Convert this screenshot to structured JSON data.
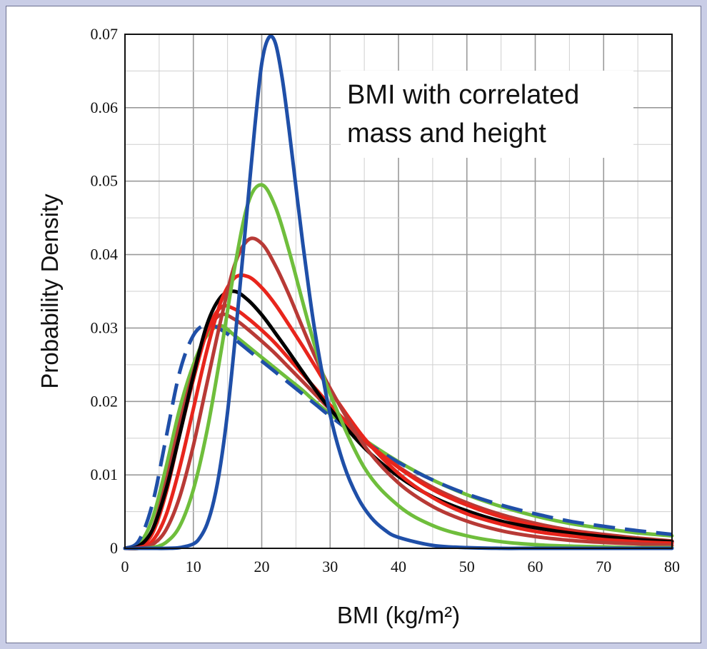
{
  "chart_data": {
    "type": "line",
    "title": "",
    "annotation": [
      "BMI with correlated",
      "mass and height"
    ],
    "xlabel": "BMI (kg/m²)",
    "ylabel": "Probability Density",
    "xlim": [
      0,
      80
    ],
    "ylim": [
      0,
      0.07
    ],
    "xticks": [
      0,
      10,
      20,
      30,
      40,
      50,
      60,
      70,
      80
    ],
    "yticks": [
      0,
      0.01,
      0.02,
      0.03,
      0.04,
      0.05,
      0.06,
      0.07
    ],
    "ytick_labels": [
      "0",
      "0.01",
      "0.02",
      "0.03",
      "0.04",
      "0.05",
      "0.06",
      "0.07"
    ],
    "grid": true,
    "legend": "none",
    "colors": {
      "blue": "#1f4fa8",
      "green": "#6fbe3c",
      "darkred": "#b83a36",
      "red": "#e8251c",
      "black": "#000000"
    },
    "series": [
      {
        "color": "#6fbe3c",
        "style": "solid",
        "x": [
          0,
          2,
          4,
          6,
          8,
          10,
          12,
          14,
          16,
          18,
          20,
          22,
          24,
          26,
          28,
          30,
          35,
          40,
          45,
          50,
          55,
          60,
          65,
          70,
          75,
          80
        ],
        "y": [
          0,
          0.0005,
          0.004,
          0.011,
          0.019,
          0.025,
          0.029,
          0.0303,
          0.029,
          0.0275,
          0.026,
          0.0245,
          0.023,
          0.0215,
          0.0198,
          0.0183,
          0.0148,
          0.0118,
          0.0093,
          0.0073,
          0.0057,
          0.0044,
          0.0034,
          0.0027,
          0.0021,
          0.0017
        ]
      },
      {
        "color": "#1f4fa8",
        "style": "dashed",
        "x": [
          0,
          2,
          4,
          6,
          8,
          10,
          12,
          14,
          16,
          18,
          20,
          22,
          24,
          26,
          28,
          30,
          35,
          40,
          45,
          50,
          55,
          60,
          65,
          70,
          75,
          80
        ],
        "y": [
          0,
          0.001,
          0.006,
          0.015,
          0.024,
          0.029,
          0.0305,
          0.0298,
          0.0285,
          0.027,
          0.0255,
          0.024,
          0.0225,
          0.021,
          0.0195,
          0.018,
          0.0146,
          0.0117,
          0.0093,
          0.0074,
          0.0059,
          0.0047,
          0.0037,
          0.003,
          0.0024,
          0.0019
        ]
      },
      {
        "color": "#b83a36",
        "style": "solid",
        "x": [
          0,
          2,
          4,
          6,
          8,
          10,
          12,
          14,
          16,
          18,
          20,
          22,
          24,
          26,
          28,
          30,
          35,
          40,
          45,
          50,
          55,
          60,
          65,
          70,
          75,
          80
        ],
        "y": [
          0,
          0.0003,
          0.0025,
          0.009,
          0.017,
          0.024,
          0.0295,
          0.0318,
          0.0312,
          0.0298,
          0.0282,
          0.0265,
          0.0246,
          0.0227,
          0.0208,
          0.0189,
          0.0146,
          0.0111,
          0.0083,
          0.0062,
          0.0046,
          0.0034,
          0.0025,
          0.0019,
          0.0014,
          0.001
        ]
      },
      {
        "color": "#e8251c",
        "style": "solid",
        "x": [
          0,
          2,
          4,
          6,
          8,
          10,
          12,
          14,
          16,
          18,
          20,
          22,
          24,
          26,
          28,
          30,
          35,
          40,
          45,
          50,
          55,
          60,
          65,
          70,
          75,
          80
        ],
        "y": [
          0,
          0.0002,
          0.002,
          0.0075,
          0.0155,
          0.023,
          0.0295,
          0.0328,
          0.0326,
          0.0313,
          0.0297,
          0.0279,
          0.0258,
          0.0237,
          0.0216,
          0.0195,
          0.0148,
          0.011,
          0.008,
          0.0059,
          0.0043,
          0.0031,
          0.0023,
          0.0017,
          0.0012,
          0.0009
        ]
      },
      {
        "color": "#000000",
        "style": "solid",
        "x": [
          0,
          2,
          4,
          6,
          8,
          10,
          12,
          14,
          16,
          18,
          20,
          22,
          24,
          26,
          28,
          30,
          35,
          40,
          45,
          50,
          55,
          60,
          65,
          70,
          75,
          80
        ],
        "y": [
          0,
          0.0003,
          0.0025,
          0.008,
          0.0155,
          0.0235,
          0.0305,
          0.0342,
          0.035,
          0.0338,
          0.0318,
          0.0293,
          0.0267,
          0.024,
          0.0214,
          0.019,
          0.0137,
          0.0098,
          0.007,
          0.0051,
          0.0037,
          0.0028,
          0.0021,
          0.0016,
          0.0012,
          0.0009
        ]
      },
      {
        "color": "#e8251c",
        "style": "solid",
        "x": [
          0,
          2,
          4,
          6,
          8,
          10,
          12,
          14,
          16,
          18,
          20,
          22,
          24,
          26,
          28,
          30,
          35,
          40,
          45,
          50,
          55,
          60,
          65,
          70,
          75,
          80
        ],
        "y": [
          0,
          0.0001,
          0.001,
          0.0045,
          0.011,
          0.019,
          0.027,
          0.0335,
          0.0368,
          0.037,
          0.0355,
          0.0332,
          0.0304,
          0.0275,
          0.0245,
          0.0215,
          0.015,
          0.0102,
          0.0069,
          0.0047,
          0.0033,
          0.0023,
          0.0017,
          0.0012,
          0.0009,
          0.0007
        ]
      },
      {
        "color": "#b83a36",
        "style": "solid",
        "x": [
          0,
          2,
          4,
          6,
          8,
          10,
          12,
          14,
          16,
          18,
          20,
          22,
          24,
          26,
          28,
          30,
          35,
          40,
          45,
          50,
          55,
          60,
          65,
          70,
          75,
          80
        ],
        "y": [
          0,
          0,
          0.0005,
          0.0025,
          0.007,
          0.014,
          0.0225,
          0.031,
          0.0385,
          0.042,
          0.0415,
          0.0385,
          0.0345,
          0.03,
          0.0257,
          0.0218,
          0.014,
          0.0089,
          0.0057,
          0.0037,
          0.0024,
          0.0016,
          0.0011,
          0.0008,
          0.0006,
          0.0004
        ]
      },
      {
        "color": "#6fbe3c",
        "style": "solid",
        "x": [
          0,
          2,
          4,
          6,
          8,
          10,
          12,
          14,
          16,
          18,
          20,
          22,
          24,
          26,
          28,
          30,
          35,
          40,
          45,
          50,
          55,
          60,
          65,
          70,
          75,
          80
        ],
        "y": [
          0,
          0,
          0.0001,
          0.0008,
          0.003,
          0.008,
          0.016,
          0.0265,
          0.038,
          0.047,
          0.0495,
          0.0465,
          0.0405,
          0.0335,
          0.0268,
          0.021,
          0.011,
          0.0058,
          0.0031,
          0.0017,
          0.0009,
          0.0005,
          0.0003,
          0.0002,
          0.0001,
          0.0001
        ]
      },
      {
        "color": "#1f4fa8",
        "style": "solid",
        "x": [
          0,
          2,
          4,
          6,
          8,
          10,
          11,
          12,
          13,
          14,
          15,
          16,
          17,
          18,
          19,
          20,
          21,
          22,
          23,
          24,
          25,
          26,
          27,
          28,
          30,
          32,
          34,
          36,
          38,
          40,
          45,
          50,
          55,
          60,
          70,
          80
        ],
        "y": [
          0,
          0,
          0,
          0,
          0.0001,
          0.0006,
          0.0015,
          0.0033,
          0.0065,
          0.0115,
          0.0185,
          0.0275,
          0.0375,
          0.0475,
          0.0575,
          0.066,
          0.0695,
          0.0688,
          0.064,
          0.057,
          0.0492,
          0.0415,
          0.0345,
          0.0283,
          0.0182,
          0.0114,
          0.007,
          0.0042,
          0.0025,
          0.0015,
          0.0004,
          0.0001,
          0,
          0,
          0,
          0
        ]
      }
    ]
  }
}
